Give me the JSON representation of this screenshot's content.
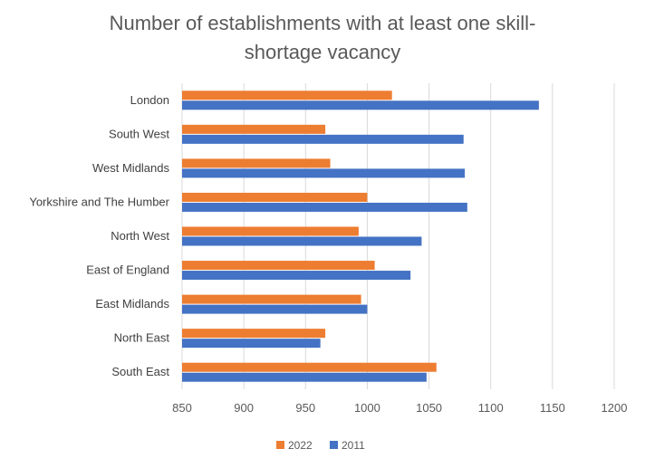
{
  "chart_data": {
    "type": "bar",
    "orientation": "horizontal",
    "title_lines": [
      "Number of establishments with at least one skill-",
      "shortage vacancy"
    ],
    "categories": [
      "London",
      "South West",
      "West Midlands",
      "Yorkshire and The Humber",
      "North West",
      "East of England",
      "East Midlands",
      "North East",
      "South East"
    ],
    "series": [
      {
        "name": "2022",
        "color": "#ED7D31",
        "values": [
          1020,
          966,
          970,
          1000,
          993,
          1006,
          995,
          966,
          1056
        ]
      },
      {
        "name": "2011",
        "color": "#4472C4",
        "values": [
          1139,
          1078,
          1079,
          1081,
          1044,
          1035,
          1000,
          962,
          1048
        ]
      }
    ],
    "xlim": [
      850,
      1200
    ],
    "xticks": [
      "850",
      "900",
      "950",
      "1000",
      "1050",
      "1100",
      "1150",
      "1200"
    ],
    "grid": true,
    "legend_position": "bottom"
  }
}
